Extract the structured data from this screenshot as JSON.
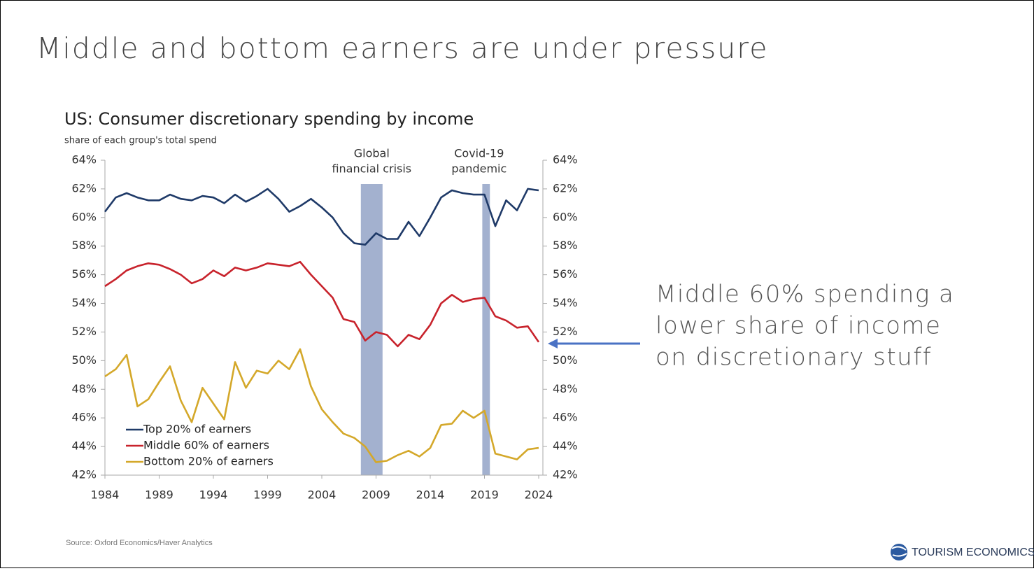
{
  "title": "Middle and bottom earners are under pressure",
  "callout": [
    "Middle 60% spending a",
    "lower share of income",
    "on discretionary stuff"
  ],
  "source": "Source: Oxford Economics/Haver Analytics",
  "brand": "TOURISM ECONOMICS",
  "chart_data": {
    "type": "line",
    "title": "US: Consumer discretionary spending by income",
    "subtitle": "share of each group's total spend",
    "x": [
      1984,
      1985,
      1986,
      1987,
      1988,
      1989,
      1990,
      1991,
      1992,
      1993,
      1994,
      1995,
      1996,
      1997,
      1998,
      1999,
      2000,
      2001,
      2002,
      2003,
      2004,
      2005,
      2006,
      2007,
      2008,
      2009,
      2010,
      2011,
      2012,
      2013,
      2014,
      2015,
      2016,
      2017,
      2018,
      2019,
      2020,
      2021,
      2022,
      2023,
      2024
    ],
    "series": [
      {
        "name": "Top 20% of earners",
        "color": "#1f3a68",
        "values": [
          60.4,
          61.4,
          61.7,
          61.4,
          61.2,
          61.2,
          61.6,
          61.3,
          61.2,
          61.5,
          61.4,
          61.0,
          61.6,
          61.1,
          61.5,
          62.0,
          61.3,
          60.4,
          60.8,
          61.3,
          60.7,
          60.0,
          58.9,
          58.2,
          58.1,
          58.9,
          58.5,
          58.5,
          59.7,
          58.7,
          60.0,
          61.4,
          61.9,
          61.7,
          61.6,
          61.6,
          59.4,
          61.2,
          60.5,
          62.0,
          61.9
        ]
      },
      {
        "name": "Middle 60% of earners",
        "color": "#c8232c",
        "values": [
          55.2,
          55.7,
          56.3,
          56.6,
          56.8,
          56.7,
          56.4,
          56.0,
          55.4,
          55.7,
          56.3,
          55.9,
          56.5,
          56.3,
          56.5,
          56.8,
          56.7,
          56.6,
          56.9,
          56.0,
          55.2,
          54.4,
          52.9,
          52.7,
          51.4,
          52.0,
          51.8,
          51.0,
          51.8,
          51.5,
          52.5,
          54.0,
          54.6,
          54.1,
          54.3,
          54.4,
          53.1,
          52.8,
          52.3,
          52.4,
          51.3
        ]
      },
      {
        "name": "Bottom 20% of earners",
        "color": "#d4a82a",
        "values": [
          48.9,
          49.4,
          50.4,
          46.8,
          47.3,
          48.5,
          49.6,
          47.2,
          45.7,
          48.1,
          47.0,
          45.9,
          49.9,
          48.1,
          49.3,
          49.1,
          50.0,
          49.4,
          50.8,
          48.2,
          46.6,
          45.7,
          44.9,
          44.6,
          44.0,
          42.9,
          43.0,
          43.4,
          43.7,
          43.3,
          43.9,
          45.5,
          45.6,
          46.5,
          46.0,
          46.5,
          43.5,
          43.3,
          43.1,
          43.8,
          43.9
        ]
      }
    ],
    "xlim": [
      1984,
      2024
    ],
    "xticks": [
      1984,
      1989,
      1994,
      1999,
      2004,
      2009,
      2014,
      2019,
      2024
    ],
    "ylim": [
      42,
      64
    ],
    "yticks": [
      {
        "value": 42,
        "label": "42%"
      },
      {
        "value": 44,
        "label": "44%"
      },
      {
        "value": 46,
        "label": "46%"
      },
      {
        "value": 48,
        "label": "48%"
      },
      {
        "value": 50,
        "label": "50%"
      },
      {
        "value": 52,
        "label": "52%"
      },
      {
        "value": 54,
        "label": "54%"
      },
      {
        "value": 56,
        "label": "56%"
      },
      {
        "value": 58,
        "label": "58%"
      },
      {
        "value": 60,
        "label": "60%"
      },
      {
        "value": 62,
        "label": "62%"
      },
      {
        "value": 64,
        "label": "64%"
      }
    ],
    "y2lim": [
      42,
      64
    ],
    "y2ticks": [
      {
        "value": 42,
        "label": "42%"
      },
      {
        "value": 44,
        "label": "44%"
      },
      {
        "value": 46,
        "label": "46%"
      },
      {
        "value": 48,
        "label": "48%"
      },
      {
        "value": 50,
        "label": "50%"
      },
      {
        "value": 52,
        "label": "52%"
      },
      {
        "value": 54,
        "label": "54%"
      },
      {
        "value": 56,
        "label": "56%"
      },
      {
        "value": 58,
        "label": "58%"
      },
      {
        "value": 60,
        "label": "60%"
      },
      {
        "value": 62,
        "label": "62%"
      },
      {
        "value": 64,
        "label": "64%"
      }
    ],
    "shaded_periods": [
      {
        "label": [
          "Global",
          "financial crisis"
        ],
        "range": [
          2007.6,
          2009.6
        ],
        "color": "#a3b1cf"
      },
      {
        "label": [
          "Covid-19",
          "pandemic"
        ],
        "range": [
          2018.8,
          2019.5
        ],
        "color": "#a3b1cf"
      }
    ],
    "legend": "lower left",
    "grid": false
  }
}
